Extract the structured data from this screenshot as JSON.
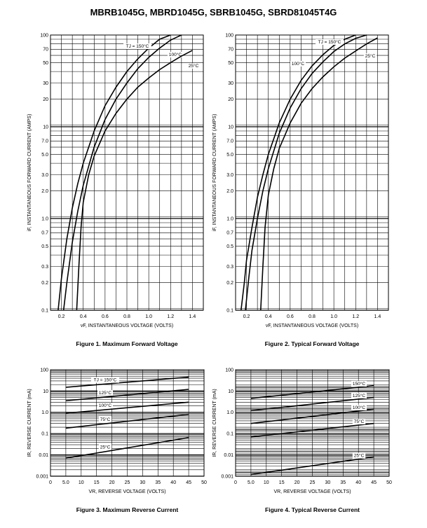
{
  "page": {
    "title": "MBRB1045G, MBRD1045G, SBRB1045G, SBRD81045T4G"
  },
  "chart_data": [
    {
      "id": "fig1",
      "type": "line",
      "caption": "Figure 1. Maximum Forward Voltage",
      "xlabel": "vF, INSTANTANEOUS VOLTAGE (VOLTS)",
      "ylabel": "iF, INSTANTANEOUS FORWARD CURRENT (AMPS)",
      "xscale": "linear",
      "yscale": "log",
      "xlim": [
        0.1,
        1.5
      ],
      "ylim": [
        0.1,
        100
      ],
      "xticks": [
        "0.2",
        "0.4",
        "0.6",
        "0.8",
        "1.0",
        "1.2",
        "1.4"
      ],
      "yticks": [
        "0.1",
        "0.2",
        "0.3",
        "0.5",
        "0.7",
        "1.0",
        "2.0",
        "3.0",
        "5.0",
        "7.0",
        "10",
        "20",
        "30",
        "50",
        "70",
        "100"
      ],
      "grid": true,
      "series": [
        {
          "name": "TJ = 150°C",
          "x": [
            0.17,
            0.2,
            0.25,
            0.3,
            0.35,
            0.4,
            0.5,
            0.6,
            0.7,
            0.8,
            0.9,
            1.0,
            1.1,
            1.2
          ],
          "y": [
            0.1,
            0.22,
            0.6,
            1.3,
            2.4,
            4.0,
            9.0,
            17,
            27,
            40,
            55,
            72,
            90,
            100
          ]
        },
        {
          "name": "100°C",
          "x": [
            0.22,
            0.25,
            0.3,
            0.35,
            0.4,
            0.5,
            0.6,
            0.7,
            0.8,
            0.9,
            1.0,
            1.1,
            1.2,
            1.3
          ],
          "y": [
            0.1,
            0.2,
            0.55,
            1.2,
            2.3,
            6.0,
            12,
            20,
            30,
            43,
            57,
            72,
            88,
            100
          ]
        },
        {
          "name": "25°C",
          "x": [
            0.34,
            0.36,
            0.38,
            0.4,
            0.45,
            0.5,
            0.6,
            0.7,
            0.8,
            0.9,
            1.0,
            1.1,
            1.2,
            1.3,
            1.4
          ],
          "y": [
            0.1,
            0.3,
            0.8,
            1.5,
            3.0,
            4.8,
            9.0,
            14,
            20,
            27,
            34,
            42,
            50,
            59,
            68
          ]
        }
      ]
    },
    {
      "id": "fig2",
      "type": "line",
      "caption": "Figure 2. Typical Forward Voltage",
      "xlabel": "vF, INSTANTANEOUS VOLTAGE (VOLTS)",
      "ylabel": "iF, INSTANTANEOUS FORWARD CURRENT (AMPS)",
      "xscale": "linear",
      "yscale": "log",
      "xlim": [
        0.1,
        1.5
      ],
      "ylim": [
        0.1,
        100
      ],
      "xticks": [
        "0.2",
        "0.4",
        "0.6",
        "0.8",
        "1.0",
        "1.2",
        "1.4"
      ],
      "yticks": [
        "0.1",
        "0.2",
        "0.3",
        "0.5",
        "0.7",
        "1.0",
        "2.0",
        "3.0",
        "5.0",
        "7.0",
        "10",
        "20",
        "30",
        "50",
        "70",
        "100"
      ],
      "grid": true,
      "series": [
        {
          "name": "TJ = 150°C",
          "x": [
            0.15,
            0.18,
            0.2,
            0.25,
            0.3,
            0.35,
            0.4,
            0.5,
            0.6,
            0.7,
            0.8,
            0.9,
            1.0,
            1.1,
            1.2
          ],
          "y": [
            0.1,
            0.2,
            0.35,
            0.8,
            1.7,
            3.0,
            5.0,
            11,
            20,
            32,
            46,
            61,
            77,
            90,
            100
          ]
        },
        {
          "name": "100°C",
          "x": [
            0.19,
            0.22,
            0.25,
            0.3,
            0.35,
            0.4,
            0.5,
            0.6,
            0.7,
            0.8,
            0.9,
            1.0,
            1.1,
            1.2,
            1.3
          ],
          "y": [
            0.1,
            0.22,
            0.45,
            1.0,
            2.0,
            3.5,
            8.5,
            16,
            26,
            38,
            51,
            66,
            80,
            92,
            100
          ]
        },
        {
          "name": "25°C",
          "x": [
            0.33,
            0.35,
            0.37,
            0.4,
            0.45,
            0.5,
            0.6,
            0.7,
            0.8,
            0.9,
            1.0,
            1.1,
            1.2,
            1.3,
            1.4
          ],
          "y": [
            0.1,
            0.3,
            0.8,
            1.8,
            3.5,
            5.8,
            11,
            18,
            26,
            35,
            45,
            56,
            67,
            80,
            93
          ]
        }
      ]
    },
    {
      "id": "fig3",
      "type": "line",
      "caption": "Figure 3. Maximum Reverse Current",
      "xlabel": "VR, REVERSE VOLTAGE (VOLTS)",
      "ylabel": "IR, REVERSE CURRENT (mA)",
      "xscale": "linear",
      "yscale": "log",
      "xlim": [
        0,
        50
      ],
      "ylim": [
        0.001,
        100
      ],
      "xticks": [
        "0",
        "5.0",
        "10",
        "15",
        "20",
        "25",
        "30",
        "35",
        "40",
        "45",
        "50"
      ],
      "yticks": [
        "0.001",
        "0.01",
        "0.1",
        "1.0",
        "10",
        "100"
      ],
      "grid": true,
      "series": [
        {
          "name": "TJ = 150°C",
          "x": [
            5,
            45
          ],
          "y": [
            15,
            45
          ]
        },
        {
          "name": "125°C",
          "x": [
            5,
            45
          ],
          "y": [
            3.5,
            12
          ]
        },
        {
          "name": "100°C",
          "x": [
            5,
            45
          ],
          "y": [
            0.9,
            3.0
          ]
        },
        {
          "name": "75°C",
          "x": [
            5,
            45
          ],
          "y": [
            0.18,
            0.8
          ]
        },
        {
          "name": "25°C",
          "x": [
            5,
            45
          ],
          "y": [
            0.007,
            0.065
          ]
        }
      ]
    },
    {
      "id": "fig4",
      "type": "line",
      "caption": "Figure 4. Typical Reverse Current",
      "xlabel": "VR, REVERSE VOLTAGE (VOLTS)",
      "ylabel": "IR, REVERSE CURRENT (mA)",
      "xscale": "linear",
      "yscale": "log",
      "xlim": [
        0,
        50
      ],
      "ylim": [
        0.001,
        100
      ],
      "xticks": [
        "0",
        "5.0",
        "10",
        "15",
        "20",
        "25",
        "30",
        "35",
        "40",
        "45",
        "50"
      ],
      "yticks": [
        "0.001",
        "0.01",
        "0.1",
        "1.0",
        "10",
        "100"
      ],
      "grid": true,
      "series": [
        {
          "name": "150°C",
          "x": [
            5,
            45
          ],
          "y": [
            4.5,
            18
          ]
        },
        {
          "name": "125°C",
          "x": [
            5,
            45
          ],
          "y": [
            1.2,
            5.0
          ]
        },
        {
          "name": "100°C",
          "x": [
            5,
            45
          ],
          "y": [
            0.3,
            1.4
          ]
        },
        {
          "name": "75°C",
          "x": [
            5,
            45
          ],
          "y": [
            0.07,
            0.3
          ]
        },
        {
          "name": "25°C",
          "x": [
            5,
            45
          ],
          "y": [
            0.0012,
            0.008
          ]
        }
      ]
    }
  ]
}
